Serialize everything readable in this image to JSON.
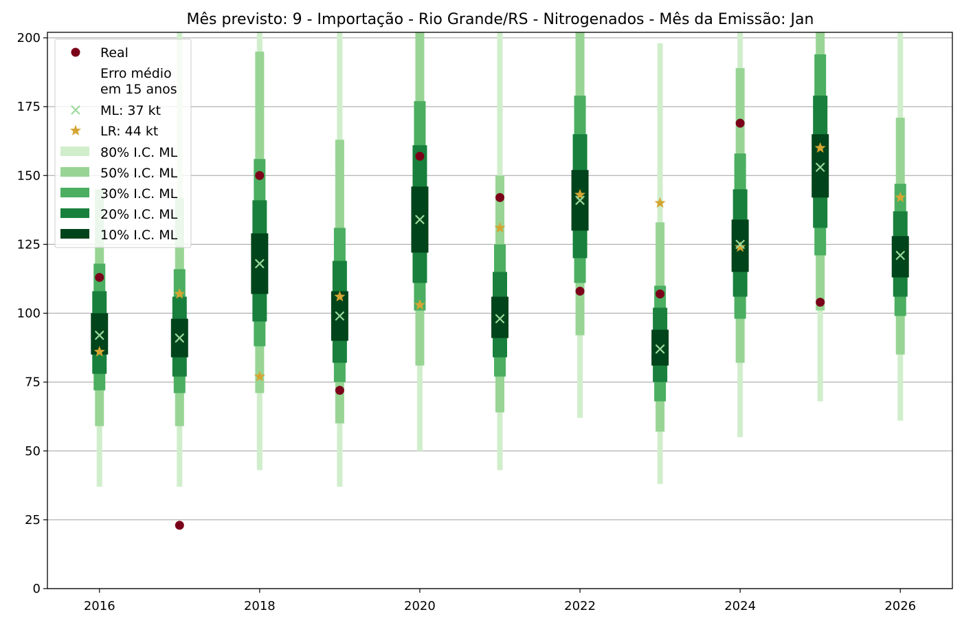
{
  "chart_data": {
    "type": "interval",
    "title": "Mês previsto: 9 - Importação - Rio Grande/RS - Nitrogenados - Mês da Emissão: Jan",
    "xlabel": "",
    "ylabel": "",
    "ylim": [
      0,
      202
    ],
    "xlim": [
      2015.35,
      2026.65
    ],
    "yticks": [
      0,
      25,
      50,
      75,
      100,
      125,
      150,
      175,
      200
    ],
    "xticks": [
      2016,
      2018,
      2020,
      2022,
      2024,
      2026
    ],
    "grid": "horizontal",
    "legend_position": "top-left",
    "colors": {
      "real": "#7b0019",
      "ml": "#9bd89b",
      "lr": "#d4a533",
      "ci80": "#d0eecb",
      "ci50": "#98d594",
      "ci30": "#4bae61",
      "ci20": "#18803c",
      "ci10": "#00441b"
    },
    "legend": {
      "real": "Real",
      "error_header_line1": "Erro médio",
      "error_header_line2": "em 15 anos",
      "ml": "ML: 37 kt",
      "lr": "LR: 44 kt",
      "ci80": "80% I.C. ML",
      "ci50": "50% I.C. ML",
      "ci30": "30% I.C. ML",
      "ci20": "20% I.C. ML",
      "ci10": "10% I.C. ML"
    },
    "x": [
      2016,
      2017,
      2018,
      2019,
      2020,
      2021,
      2022,
      2023,
      2024,
      2025,
      2026
    ],
    "real": [
      113,
      23,
      150,
      72,
      157,
      142,
      108,
      107,
      169,
      104,
      null
    ],
    "ml": [
      92,
      91,
      118,
      99,
      134,
      98,
      141,
      87,
      125,
      153,
      121
    ],
    "lr": [
      86,
      107,
      77,
      106,
      103,
      131,
      143,
      140,
      124,
      160,
      142
    ],
    "intervals": {
      "ci80": [
        [
          37,
          145
        ],
        [
          37,
          202
        ],
        [
          43,
          202
        ],
        [
          37,
          202
        ],
        [
          50,
          202
        ],
        [
          43,
          202
        ],
        [
          62,
          202
        ],
        [
          38,
          198
        ],
        [
          55,
          202
        ],
        [
          68,
          202
        ],
        [
          61,
          202
        ]
      ],
      "ci50": [
        [
          59,
          145
        ],
        [
          59,
          142
        ],
        [
          71,
          195
        ],
        [
          60,
          163
        ],
        [
          81,
          202
        ],
        [
          64,
          150
        ],
        [
          92,
          202
        ],
        [
          57,
          133
        ],
        [
          82,
          189
        ],
        [
          101,
          202
        ],
        [
          85,
          171
        ]
      ],
      "ci30": [
        [
          72,
          118
        ],
        [
          71,
          116
        ],
        [
          88,
          156
        ],
        [
          75,
          131
        ],
        [
          101,
          177
        ],
        [
          77,
          125
        ],
        [
          111,
          179
        ],
        [
          68,
          110
        ],
        [
          98,
          158
        ],
        [
          121,
          194
        ],
        [
          99,
          147
        ]
      ],
      "ci20": [
        [
          78,
          108
        ],
        [
          77,
          106
        ],
        [
          97,
          141
        ],
        [
          82,
          119
        ],
        [
          111,
          161
        ],
        [
          84,
          115
        ],
        [
          120,
          165
        ],
        [
          75,
          102
        ],
        [
          106,
          145
        ],
        [
          131,
          179
        ],
        [
          106,
          137
        ]
      ],
      "ci10": [
        [
          85,
          100
        ],
        [
          84,
          98
        ],
        [
          107,
          129
        ],
        [
          90,
          108
        ],
        [
          122,
          146
        ],
        [
          91,
          106
        ],
        [
          130,
          152
        ],
        [
          81,
          94
        ],
        [
          115,
          134
        ],
        [
          142,
          165
        ],
        [
          113,
          128
        ]
      ]
    }
  }
}
